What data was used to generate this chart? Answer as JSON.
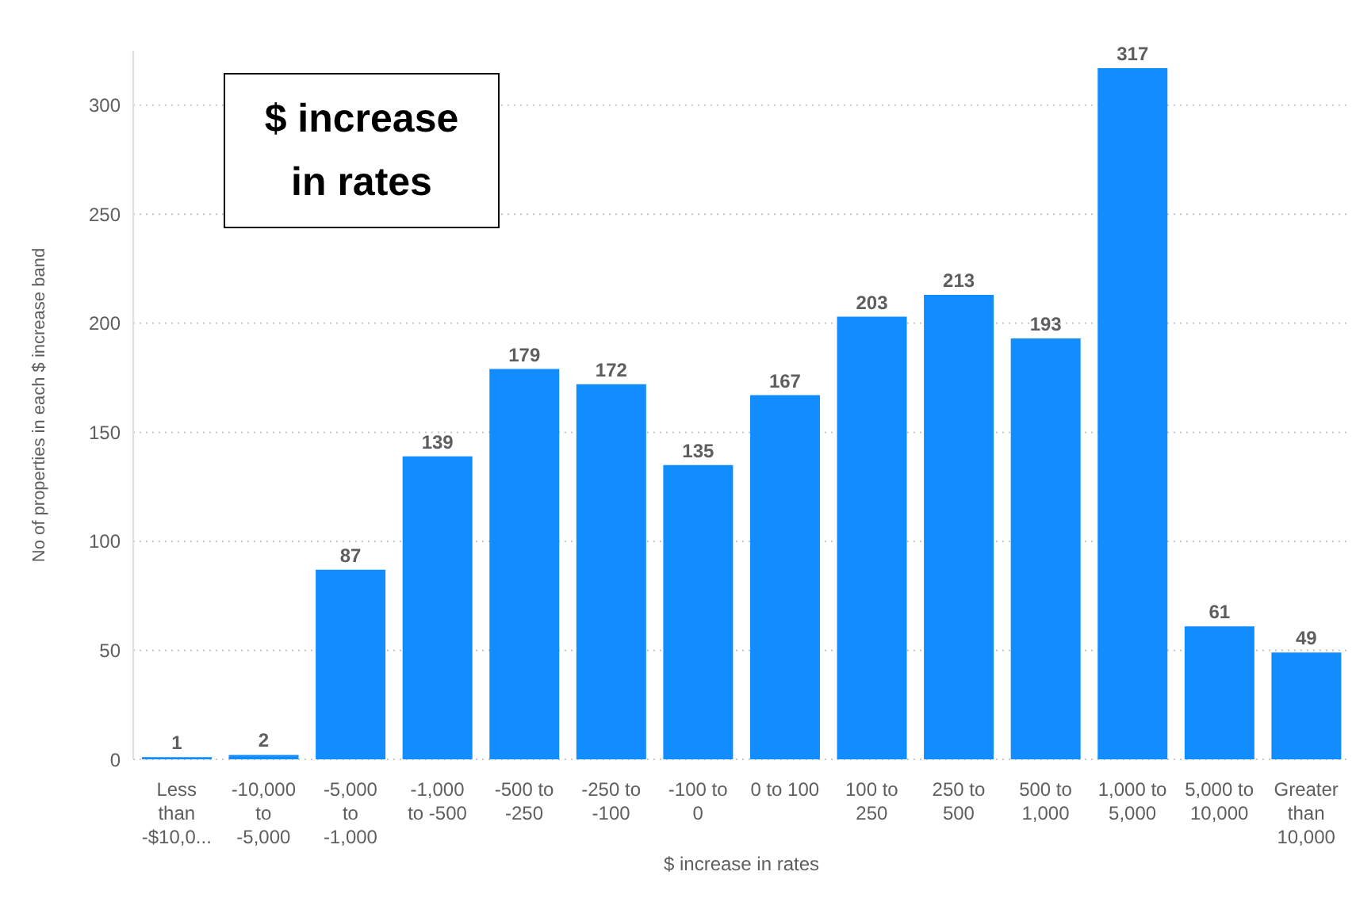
{
  "chart_data": {
    "type": "bar",
    "title": "$ increase in rates",
    "xlabel": "$ increase in rates",
    "ylabel": "No of properties in each $ increase band",
    "categories": [
      "Less than -$10,0...",
      "-10,000 to -5,000",
      "-5,000 to -1,000",
      "-1,000 to -500",
      "-500 to -250",
      "-250 to -100",
      "-100 to 0",
      "0 to 100",
      "100 to 250",
      "250 to 500",
      "500 to 1,000",
      "1,000 to 5,000",
      "5,000 to 10,000",
      "Greater than 10,000"
    ],
    "values": [
      1,
      2,
      87,
      139,
      179,
      172,
      135,
      167,
      203,
      213,
      193,
      317,
      61,
      49
    ],
    "color": "#118dff",
    "ylim": [
      0,
      325
    ],
    "yticks": [
      0,
      50,
      100,
      150,
      200,
      250,
      300
    ],
    "grid": "y",
    "data_labels": true
  }
}
